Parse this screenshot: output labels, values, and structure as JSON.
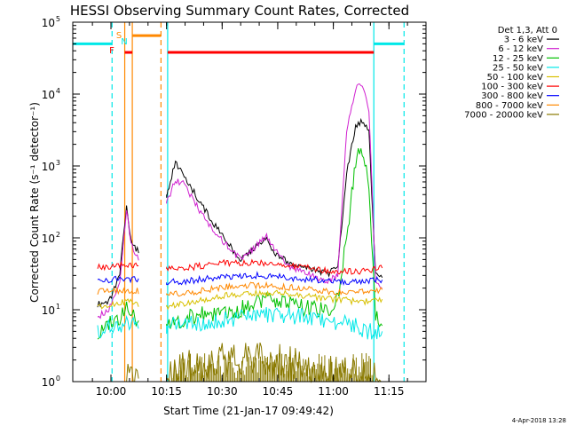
{
  "chart_data": {
    "type": "line",
    "title": "HESSI Observing Summary Count Rates, Corrected",
    "ylabel": "Corrected Count Rate (s⁻¹ detector⁻¹)",
    "xlabel": "Start Time (21-Jan-17 09:49:42)",
    "yscale": "log",
    "ylim": [
      1,
      100000
    ],
    "xlim": [
      "09:49:42",
      "11:25:00"
    ],
    "x_ticks": [
      "10:00",
      "10:15",
      "10:30",
      "10:45",
      "11:00",
      "11:15"
    ],
    "y_ticks": [
      {
        "base": "10",
        "exp": "0"
      },
      {
        "base": "10",
        "exp": "1"
      },
      {
        "base": "10",
        "exp": "2"
      },
      {
        "base": "10",
        "exp": "3"
      },
      {
        "base": "10",
        "exp": "4"
      },
      {
        "base": "10",
        "exp": "5"
      }
    ],
    "legend": {
      "placement": "right",
      "header": "Det 1,3, Att 0",
      "entries": [
        {
          "label": "3 - 6 keV",
          "color": "#000000"
        },
        {
          "label": "6 - 12 keV",
          "color": "#d020d0"
        },
        {
          "label": "12 - 25 keV",
          "color": "#00c000"
        },
        {
          "label": "25 - 50 keV",
          "color": "#00e8e8"
        },
        {
          "label": "50 - 100 keV",
          "color": "#d8c000"
        },
        {
          "label": "100 - 300 keV",
          "color": "#ff0000"
        },
        {
          "label": "300 - 800 keV",
          "color": "#0000ff"
        },
        {
          "label": "800 - 7000 keV",
          "color": "#ff8800"
        },
        {
          "label": "7000 - 20000 keV",
          "color": "#8a7a00"
        }
      ]
    },
    "flags": [
      {
        "label": "S",
        "color": "#ff8800"
      },
      {
        "label": "N",
        "color": "#00e8e8"
      },
      {
        "label": "F",
        "color": "#ff0000"
      }
    ],
    "series": [
      {
        "name": "3 - 6 keV",
        "color": "#000000",
        "points": [
          [
            9.94,
            12
          ],
          [
            9.99,
            13
          ],
          [
            10.04,
            30
          ],
          [
            10.07,
            300
          ],
          [
            10.09,
            90
          ],
          [
            10.13,
            60
          ],
          [
            10.25,
            400
          ],
          [
            10.29,
            1100
          ],
          [
            10.33,
            700
          ],
          [
            10.38,
            400
          ],
          [
            10.44,
            200
          ],
          [
            10.52,
            90
          ],
          [
            10.58,
            50
          ],
          [
            10.64,
            70
          ],
          [
            10.7,
            95
          ],
          [
            10.74,
            60
          ],
          [
            10.8,
            45
          ],
          [
            10.85,
            40
          ],
          [
            10.92,
            35
          ],
          [
            10.98,
            32
          ],
          [
            11.02,
            40
          ],
          [
            11.06,
            800
          ],
          [
            11.1,
            3500
          ],
          [
            11.13,
            4200
          ],
          [
            11.16,
            3000
          ],
          [
            11.19,
            30
          ],
          [
            11.22,
            28
          ]
        ]
      },
      {
        "name": "6 - 12 keV",
        "color": "#d020d0",
        "points": [
          [
            9.94,
            8
          ],
          [
            9.99,
            10
          ],
          [
            10.04,
            25
          ],
          [
            10.07,
            250
          ],
          [
            10.09,
            80
          ],
          [
            10.13,
            50
          ],
          [
            10.25,
            300
          ],
          [
            10.29,
            650
          ],
          [
            10.33,
            550
          ],
          [
            10.38,
            300
          ],
          [
            10.44,
            150
          ],
          [
            10.52,
            80
          ],
          [
            10.58,
            50
          ],
          [
            10.64,
            70
          ],
          [
            10.7,
            105
          ],
          [
            10.74,
            65
          ],
          [
            10.8,
            40
          ],
          [
            10.85,
            35
          ],
          [
            10.92,
            28
          ],
          [
            10.98,
            25
          ],
          [
            11.02,
            30
          ],
          [
            11.06,
            3000
          ],
          [
            11.1,
            12000
          ],
          [
            11.13,
            14000
          ],
          [
            11.16,
            6000
          ],
          [
            11.19,
            25
          ],
          [
            11.22,
            20
          ]
        ]
      },
      {
        "name": "12 - 25 keV",
        "color": "#00c000",
        "points": [
          [
            9.94,
            5
          ],
          [
            9.99,
            6
          ],
          [
            10.04,
            8
          ],
          [
            10.07,
            10
          ],
          [
            10.09,
            8
          ],
          [
            10.13,
            7
          ],
          [
            10.25,
            6
          ],
          [
            10.29,
            7
          ],
          [
            10.38,
            8
          ],
          [
            10.44,
            9
          ],
          [
            10.52,
            9
          ],
          [
            10.58,
            10
          ],
          [
            10.64,
            12
          ],
          [
            10.7,
            14
          ],
          [
            10.74,
            13
          ],
          [
            10.8,
            12
          ],
          [
            10.85,
            11
          ],
          [
            10.92,
            10
          ],
          [
            10.98,
            10
          ],
          [
            11.02,
            15
          ],
          [
            11.06,
            100
          ],
          [
            11.1,
            1200
          ],
          [
            11.13,
            1800
          ],
          [
            11.16,
            500
          ],
          [
            11.19,
            8
          ],
          [
            11.22,
            6
          ]
        ]
      },
      {
        "name": "25 - 50 keV",
        "color": "#00e8e8",
        "points": [
          [
            9.94,
            5
          ],
          [
            9.99,
            5.5
          ],
          [
            10.04,
            6
          ],
          [
            10.07,
            7
          ],
          [
            10.13,
            6
          ],
          [
            10.25,
            6
          ],
          [
            10.33,
            6
          ],
          [
            10.44,
            7
          ],
          [
            10.52,
            7.5
          ],
          [
            10.64,
            8
          ],
          [
            10.74,
            8.5
          ],
          [
            10.85,
            8
          ],
          [
            10.92,
            7.5
          ],
          [
            10.98,
            7
          ],
          [
            11.04,
            6.5
          ],
          [
            11.1,
            6
          ],
          [
            11.16,
            5
          ],
          [
            11.22,
            5
          ]
        ]
      },
      {
        "name": "50 - 100 keV",
        "color": "#d8c000",
        "points": [
          [
            9.94,
            11
          ],
          [
            9.99,
            12
          ],
          [
            10.07,
            13
          ],
          [
            10.13,
            12
          ],
          [
            10.25,
            11
          ],
          [
            10.33,
            12
          ],
          [
            10.44,
            14
          ],
          [
            10.52,
            16
          ],
          [
            10.64,
            17
          ],
          [
            10.74,
            17
          ],
          [
            10.85,
            16
          ],
          [
            10.92,
            15
          ],
          [
            10.98,
            14
          ],
          [
            11.04,
            14
          ],
          [
            11.1,
            13
          ],
          [
            11.16,
            13
          ],
          [
            11.22,
            14
          ]
        ]
      },
      {
        "name": "100 - 300 keV",
        "color": "#ff0000",
        "points": [
          [
            9.94,
            40
          ],
          [
            9.99,
            40
          ],
          [
            10.07,
            42
          ],
          [
            10.13,
            40
          ],
          [
            10.25,
            37
          ],
          [
            10.33,
            38
          ],
          [
            10.44,
            42
          ],
          [
            10.52,
            45
          ],
          [
            10.64,
            46
          ],
          [
            10.74,
            44
          ],
          [
            10.85,
            40
          ],
          [
            10.92,
            37
          ],
          [
            10.98,
            35
          ],
          [
            11.04,
            34
          ],
          [
            11.1,
            34
          ],
          [
            11.16,
            35
          ],
          [
            11.22,
            38
          ]
        ]
      },
      {
        "name": "300 - 800 keV",
        "color": "#0000ff",
        "points": [
          [
            9.94,
            26
          ],
          [
            9.99,
            26
          ],
          [
            10.07,
            27
          ],
          [
            10.13,
            26
          ],
          [
            10.25,
            24
          ],
          [
            10.33,
            25
          ],
          [
            10.44,
            27
          ],
          [
            10.52,
            29
          ],
          [
            10.64,
            30
          ],
          [
            10.74,
            29
          ],
          [
            10.85,
            27
          ],
          [
            10.92,
            26
          ],
          [
            10.98,
            25
          ],
          [
            11.04,
            25
          ],
          [
            11.1,
            24
          ],
          [
            11.16,
            25
          ],
          [
            11.22,
            26
          ]
        ]
      },
      {
        "name": "800 - 7000 keV",
        "color": "#ff8800",
        "points": [
          [
            9.94,
            18
          ],
          [
            9.99,
            18
          ],
          [
            10.07,
            19
          ],
          [
            10.13,
            18
          ],
          [
            10.25,
            16
          ],
          [
            10.33,
            17
          ],
          [
            10.44,
            19
          ],
          [
            10.52,
            21
          ],
          [
            10.64,
            22
          ],
          [
            10.74,
            21
          ],
          [
            10.85,
            20
          ],
          [
            10.92,
            19
          ],
          [
            10.98,
            18
          ],
          [
            11.04,
            18
          ],
          [
            11.1,
            18
          ],
          [
            11.16,
            18
          ],
          [
            11.22,
            19
          ]
        ]
      },
      {
        "name": "7000 - 20000 keV",
        "color": "#8a7a00",
        "points": [
          [
            10.07,
            1
          ],
          [
            10.13,
            1
          ],
          [
            10.25,
            1.2
          ],
          [
            10.4,
            1.8
          ],
          [
            10.5,
            2
          ],
          [
            10.6,
            2.2
          ],
          [
            10.7,
            2
          ],
          [
            10.8,
            1.8
          ],
          [
            10.9,
            1.5
          ],
          [
            11.0,
            1.3
          ],
          [
            11.1,
            1.2
          ],
          [
            11.22,
            1
          ]
        ]
      }
    ],
    "segments": [
      {
        "series": "25 - 50 keV",
        "x0": 9.828,
        "x1": 10.005,
        "y": 50000
      },
      {
        "series": "25 - 50 keV",
        "x0": 11.182,
        "x1": 11.318,
        "y": 50000
      },
      {
        "series": "800 - 7000 keV",
        "x0": 10.096,
        "x1": 10.225,
        "y": 65000
      },
      {
        "series": "100 - 300 keV",
        "x0": 10.062,
        "x1": 10.096,
        "y": 38000
      },
      {
        "series": "100 - 300 keV",
        "x0": 10.255,
        "x1": 11.182,
        "y": 38000
      }
    ],
    "vlines": [
      {
        "color": "#00e8e8",
        "style": "dashed",
        "x": 10.005
      },
      {
        "color": "#ff8800",
        "style": "solid",
        "x": 10.062
      },
      {
        "color": "#ff8800",
        "style": "solid",
        "x": 10.096
      },
      {
        "color": "#ff8800",
        "style": "dashed",
        "x": 10.225
      },
      {
        "color": "#00e8e8",
        "style": "solid",
        "x": 10.255
      },
      {
        "color": "#00e8e8",
        "style": "solid",
        "x": 11.182
      },
      {
        "color": "#00e8e8",
        "style": "dashed",
        "x": 11.318
      }
    ]
  },
  "footer": {
    "timestamp": "4-Apr-2018 13:28"
  }
}
